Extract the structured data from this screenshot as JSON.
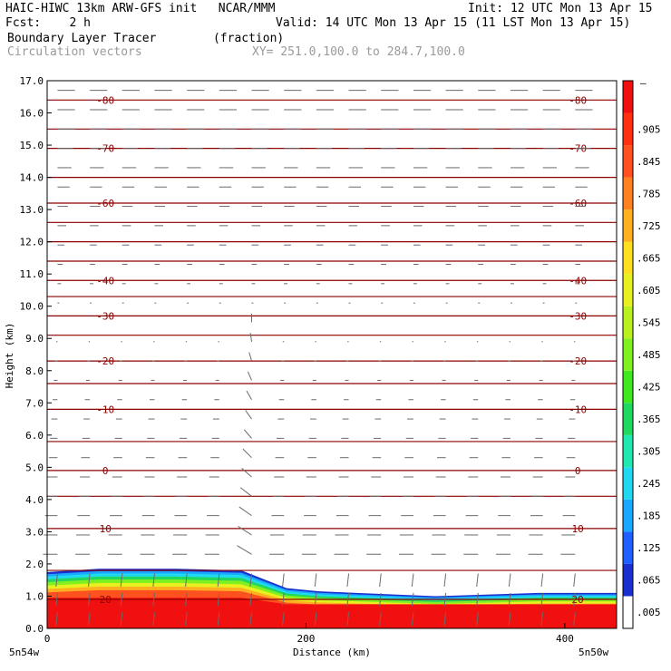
{
  "header": {
    "title_left": "HAIC-HIWC 13km ARW-GFS init   NCAR/MMM",
    "init": "Init: 12 UTC Mon 13 Apr 15",
    "fcst": "Fcst:    2 h",
    "valid": "Valid: 14 UTC Mon 13 Apr 15 (11 LST Mon 13 Apr 15)",
    "field": "Boundary Layer Tracer        (fraction)",
    "vectors": "Circulation vectors",
    "xy": "XY= 251.0,100.0 to 284.7,100.0"
  },
  "chart_data": {
    "type": "heatmap",
    "xlabel": "Distance (km)",
    "ylabel": "Height (km)",
    "xlim": [
      0,
      440
    ],
    "ylim": [
      0,
      17
    ],
    "x_ticks": [
      "0",
      "200",
      "400"
    ],
    "x_tick_values": [
      0,
      200,
      400
    ],
    "y_ticks": [
      "0.0",
      "1.0",
      "2.0",
      "3.0",
      "4.0",
      "5.0",
      "6.0",
      "7.0",
      "8.0",
      "9.0",
      "10.0",
      "11.0",
      "12.0",
      "13.0",
      "14.0",
      "15.0",
      "16.0",
      "17.0"
    ],
    "x_endpoints": [
      "5n54w",
      "5n50w"
    ],
    "colorbar": {
      "labels": [
        ".005",
        ".065",
        ".125",
        ".185",
        ".245",
        ".305",
        ".365",
        ".425",
        ".485",
        ".545",
        ".605",
        ".665",
        ".725",
        ".785",
        ".845",
        ".905"
      ],
      "top_label": "–",
      "colors": [
        "#ffffff",
        "#1a2fcc",
        "#2060ff",
        "#1aa7ff",
        "#20d8f0",
        "#20e8b0",
        "#20d860",
        "#40e820",
        "#80f020",
        "#b8f020",
        "#e8f020",
        "#ffe020",
        "#ffb020",
        "#ff8020",
        "#ff5020",
        "#ff3010",
        "#f01010"
      ]
    },
    "tracer_top_km": [
      {
        "x": 0,
        "y": 1.75
      },
      {
        "x": 40,
        "y": 1.85
      },
      {
        "x": 100,
        "y": 1.85
      },
      {
        "x": 150,
        "y": 1.8
      },
      {
        "x": 185,
        "y": 1.25
      },
      {
        "x": 210,
        "y": 1.15
      },
      {
        "x": 300,
        "y": 1.0
      },
      {
        "x": 380,
        "y": 1.1
      },
      {
        "x": 440,
        "y": 1.1
      }
    ],
    "temperature_contours": [
      {
        "label": "-80",
        "y": 16.4
      },
      {
        "label": "-70",
        "y": 14.9
      },
      {
        "label": "-60",
        "y": 13.2
      },
      {
        "label": "-40",
        "y": 10.8
      },
      {
        "label": "-30",
        "y": 9.7
      },
      {
        "label": "-20",
        "y": 8.3
      },
      {
        "label": "-10",
        "y": 6.8
      },
      {
        "label": "0",
        "y": 4.9
      },
      {
        "label": "10",
        "y": 3.1
      },
      {
        "label": "20",
        "y": 0.9
      }
    ],
    "unlabeled_contours_km": [
      15.5,
      14.0,
      12.6,
      12.0,
      11.4,
      10.3,
      9.1,
      7.6,
      5.8,
      4.1,
      1.8
    ]
  }
}
